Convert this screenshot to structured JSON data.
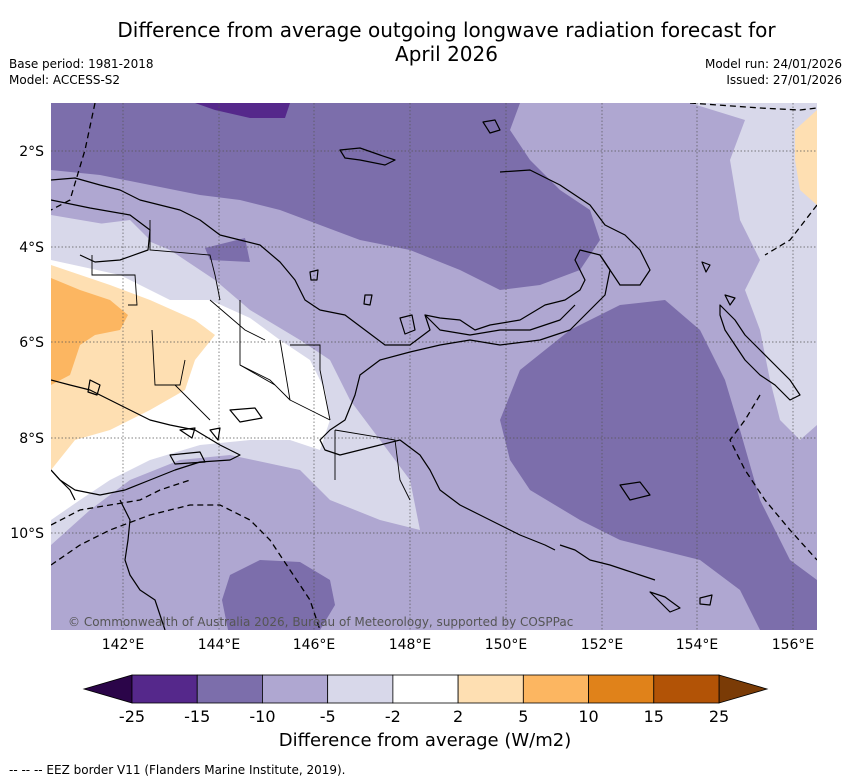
{
  "title": "Difference from average outgoing longwave radiation forecast for April 2026",
  "title_lines": [
    "Difference from average outgoing longwave radiation forecast for",
    "April 2026"
  ],
  "base_period": "Base period: 1981-2018",
  "model": "Model: ACCESS-S2",
  "model_run": "Model run: 24/01/2026",
  "issued": "Issued: 27/01/2026",
  "copyright": "© Commonwealth of Australia 2026, Bureau of Meteorology, supported by COSPPac",
  "lat_labels": [
    "2°S",
    "4°S",
    "6°S",
    "8°S",
    "10°S"
  ],
  "lon_labels": [
    "142°E",
    "144°E",
    "146°E",
    "148°E",
    "150°E",
    "152°E",
    "154°E",
    "156°E"
  ],
  "colorbar": {
    "title": "Difference from average (W/m2)",
    "tick_labels": [
      "-25",
      "-15",
      "-10",
      "-5",
      "-2",
      "2",
      "5",
      "10",
      "15",
      "25"
    ],
    "colors": [
      "#55288b",
      "#7c6eab",
      "#afa7d1",
      "#d8d8ea",
      "#ffffff",
      "#fedfb2",
      "#fcb661",
      "#e0821a",
      "#b25306"
    ],
    "extend_low": "#2b0549",
    "extend_high": "#7a3b06"
  },
  "footer": "--  --  -- EEZ border V11 (Flanders Marine Institute, 2019)."
}
